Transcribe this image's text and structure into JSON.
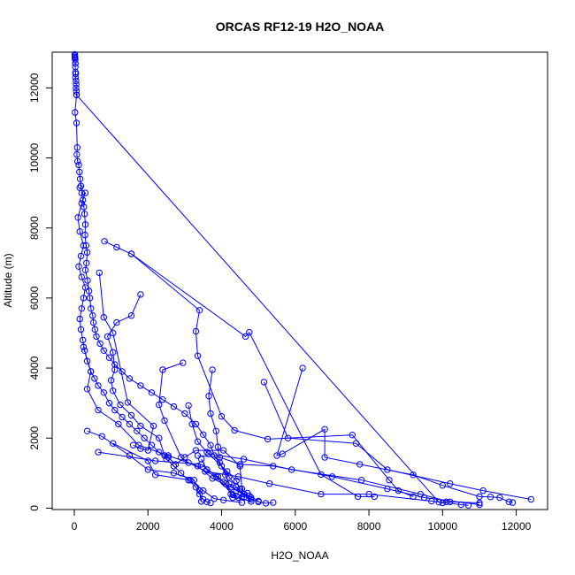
{
  "chart_data": {
    "type": "line",
    "title": "ORCAS RF12-19 H2O_NOAA",
    "xlabel": "H2O_NOAA",
    "ylabel": "Altitude (m)",
    "xlim": [
      -600,
      12850
    ],
    "ylim": [
      -40,
      13020
    ],
    "xticks": [
      0,
      2000,
      4000,
      6000,
      8000,
      10000,
      12000
    ],
    "yticks": [
      0,
      2000,
      4000,
      6000,
      8000,
      10000,
      12000
    ],
    "grid": false,
    "color": "#0000ff",
    "series": [
      {
        "values": [
          [
            12,
            12960
          ],
          [
            15,
            12920
          ],
          [
            18,
            12880
          ],
          [
            20,
            12850
          ],
          [
            25,
            12800
          ],
          [
            30,
            12700
          ],
          [
            28,
            12600
          ],
          [
            35,
            12450
          ],
          [
            40,
            12400
          ],
          [
            30,
            12300
          ],
          [
            45,
            12200
          ],
          [
            50,
            12100
          ],
          [
            48,
            12000
          ],
          [
            55,
            11900
          ],
          [
            60,
            11800
          ],
          [
            20,
            11300
          ],
          [
            60,
            11000
          ],
          [
            80,
            10300
          ],
          [
            70,
            10100
          ],
          [
            90,
            9900
          ],
          [
            120,
            9800
          ],
          [
            140,
            9600
          ],
          [
            160,
            9400
          ],
          [
            180,
            9200
          ],
          [
            200,
            9000
          ],
          [
            230,
            8800
          ],
          [
            260,
            8600
          ],
          [
            280,
            8400
          ],
          [
            300,
            8100
          ],
          [
            290,
            7800
          ],
          [
            320,
            7500
          ],
          [
            350,
            7300
          ],
          [
            330,
            7000
          ],
          [
            300,
            6800
          ],
          [
            360,
            6500
          ],
          [
            400,
            6200
          ],
          [
            420,
            6000
          ],
          [
            450,
            5700
          ],
          [
            500,
            5500
          ],
          [
            520,
            5300
          ],
          [
            560,
            5100
          ],
          [
            600,
            4900
          ],
          [
            700,
            4700
          ],
          [
            800,
            4500
          ],
          [
            950,
            4300
          ],
          [
            1100,
            4100
          ],
          [
            1300,
            3900
          ],
          [
            1500,
            3700
          ],
          [
            1800,
            3500
          ],
          [
            2100,
            3300
          ],
          [
            2400,
            3100
          ],
          [
            2700,
            2900
          ],
          [
            3000,
            2700
          ],
          [
            3300,
            2400
          ],
          [
            3500,
            2100
          ],
          [
            3700,
            1800
          ],
          [
            3800,
            1500
          ],
          [
            4000,
            1200
          ],
          [
            4200,
            900
          ],
          [
            4400,
            600
          ],
          [
            4600,
            400
          ],
          [
            4800,
            250
          ],
          [
            5000,
            180
          ],
          [
            5200,
            140
          ],
          [
            5400,
            160
          ]
        ]
      },
      {
        "values": [
          [
            60,
            11800
          ],
          [
            9900,
            170
          ],
          [
            10000,
            150
          ],
          [
            10100,
            180
          ]
        ]
      },
      {
        "values": [
          [
            150,
            9150
          ],
          [
            300,
            9000
          ],
          [
            200,
            8700
          ],
          [
            100,
            8300
          ],
          [
            150,
            7900
          ],
          [
            250,
            7500
          ],
          [
            180,
            7200
          ],
          [
            120,
            6900
          ],
          [
            200,
            6600
          ],
          [
            300,
            6300
          ],
          [
            250,
            6000
          ],
          [
            200,
            5700
          ],
          [
            150,
            5400
          ],
          [
            180,
            5100
          ],
          [
            230,
            4800
          ],
          [
            280,
            4500
          ],
          [
            350,
            4200
          ],
          [
            450,
            3900
          ],
          [
            550,
            3700
          ],
          [
            650,
            3500
          ],
          [
            800,
            3300
          ],
          [
            950,
            3000
          ],
          [
            1100,
            2800
          ],
          [
            1300,
            2600
          ],
          [
            1500,
            2400
          ],
          [
            1700,
            2200
          ],
          [
            1900,
            2000
          ],
          [
            2100,
            1800
          ],
          [
            2300,
            1600
          ],
          [
            2500,
            1400
          ],
          [
            2700,
            1200
          ],
          [
            2900,
            1000
          ],
          [
            3100,
            800
          ],
          [
            3300,
            600
          ],
          [
            3400,
            400
          ],
          [
            3500,
            250
          ],
          [
            3600,
            180
          ],
          [
            3700,
            150
          ]
        ]
      },
      {
        "values": [
          [
            820,
            7620
          ],
          [
            1150,
            7450
          ],
          [
            1550,
            7260
          ],
          [
            4650,
            4900
          ],
          [
            4750,
            5020
          ],
          [
            6700,
            960
          ],
          [
            7700,
            330
          ],
          [
            8150,
            330
          ]
        ]
      },
      {
        "values": [
          [
            1550,
            7260
          ],
          [
            3400,
            5650
          ],
          [
            3300,
            5050
          ],
          [
            3350,
            4350
          ],
          [
            4000,
            2620
          ],
          [
            4350,
            2220
          ],
          [
            5250,
            1970
          ],
          [
            7550,
            2090
          ],
          [
            8550,
            800
          ],
          [
            8800,
            500
          ],
          [
            9200,
            330
          ]
        ]
      },
      {
        "values": [
          [
            680,
            6720
          ],
          [
            800,
            5450
          ],
          [
            1050,
            5000
          ],
          [
            1450,
            3020
          ],
          [
            2150,
            2350
          ],
          [
            2000,
            1650
          ],
          [
            1800,
            1700
          ],
          [
            1600,
            1800
          ]
        ]
      },
      {
        "values": [
          [
            1800,
            6100
          ],
          [
            1550,
            5500
          ],
          [
            1150,
            5300
          ],
          [
            900,
            4900
          ],
          [
            1050,
            4450
          ],
          [
            1100,
            3950
          ],
          [
            1000,
            3650
          ],
          [
            1050,
            3350
          ],
          [
            1250,
            2950
          ],
          [
            1550,
            2650
          ],
          [
            1800,
            2350
          ],
          [
            2300,
            2000
          ],
          [
            2450,
            1500
          ],
          [
            2550,
            1450
          ],
          [
            2750,
            1250
          ],
          [
            3000,
            1450
          ],
          [
            3300,
            1650
          ],
          [
            4050,
            1650
          ],
          [
            4500,
            1200
          ],
          [
            4550,
            550
          ],
          [
            4600,
            300
          ]
        ]
      },
      {
        "values": [
          [
            2950,
            4150
          ],
          [
            2400,
            3950
          ],
          [
            2300,
            2950
          ],
          [
            2450,
            2500
          ],
          [
            2900,
            1450
          ],
          [
            3100,
            1300
          ],
          [
            3850,
            900
          ],
          [
            4300,
            380
          ],
          [
            4450,
            300
          ],
          [
            4800,
            190
          ]
        ]
      },
      {
        "values": [
          [
            3750,
            3950
          ],
          [
            3650,
            3200
          ],
          [
            3700,
            2700
          ],
          [
            3850,
            2200
          ],
          [
            3900,
            1750
          ],
          [
            3950,
            1300
          ],
          [
            4100,
            950
          ],
          [
            4200,
            700
          ],
          [
            4400,
            500
          ],
          [
            4800,
            300
          ]
        ]
      },
      {
        "values": [
          [
            6200,
            4000
          ],
          [
            5500,
            1500
          ],
          [
            5650,
            1550
          ],
          [
            6800,
            2250
          ],
          [
            6800,
            1450
          ],
          [
            7750,
            1250
          ],
          [
            9200,
            950
          ],
          [
            10000,
            650
          ],
          [
            11000,
            330
          ],
          [
            11300,
            320
          ],
          [
            11550,
            300
          ],
          [
            11800,
            180
          ],
          [
            11900,
            160
          ]
        ]
      },
      {
        "values": [
          [
            5150,
            3600
          ],
          [
            5800,
            2000
          ],
          [
            7650,
            1850
          ],
          [
            8500,
            1100
          ],
          [
            10200,
            700
          ],
          [
            11100,
            500
          ],
          [
            12400,
            250
          ]
        ]
      },
      {
        "values": [
          [
            650,
            1600
          ],
          [
            2200,
            1350
          ],
          [
            3450,
            1250
          ],
          [
            4050,
            750
          ],
          [
            4400,
            350
          ]
        ]
      },
      {
        "values": [
          [
            1050,
            1850
          ],
          [
            2000,
            1350
          ],
          [
            2200,
            950
          ],
          [
            3150,
            800
          ],
          [
            3500,
            500
          ],
          [
            3800,
            270
          ],
          [
            4050,
            230
          ],
          [
            4550,
            160
          ]
        ]
      },
      {
        "values": [
          [
            3450,
            1400
          ],
          [
            3600,
            1100
          ],
          [
            3900,
            900
          ],
          [
            4100,
            700
          ],
          [
            4250,
            400
          ],
          [
            4300,
            300
          ],
          [
            4550,
            320
          ]
        ]
      },
      {
        "values": [
          [
            350,
            2200
          ],
          [
            750,
            2050
          ],
          [
            1500,
            1500
          ],
          [
            2000,
            1100
          ],
          [
            2700,
            1000
          ],
          [
            3250,
            800
          ],
          [
            3400,
            500
          ],
          [
            3450,
            190
          ]
        ]
      },
      {
        "values": [
          [
            250,
            4600
          ],
          [
            450,
            3900
          ],
          [
            350,
            3400
          ],
          [
            650,
            2800
          ],
          [
            1200,
            2400
          ],
          [
            1750,
            1800
          ],
          [
            2550,
            1500
          ],
          [
            3350,
            1200
          ],
          [
            3750,
            850
          ],
          [
            4250,
            600
          ],
          [
            4750,
            350
          ],
          [
            5000,
            200
          ]
        ]
      },
      {
        "values": [
          [
            3550,
            1050
          ],
          [
            4450,
            900
          ],
          [
            5300,
            700
          ],
          [
            6700,
            400
          ],
          [
            8000,
            400
          ],
          [
            9700,
            200
          ],
          [
            10500,
            100
          ],
          [
            10700,
            80
          ]
        ]
      },
      {
        "values": [
          [
            3650,
            1550
          ],
          [
            4600,
            1400
          ],
          [
            5900,
            1100
          ],
          [
            7800,
            800
          ],
          [
            9400,
            400
          ],
          [
            10200,
            180
          ],
          [
            11000,
            150
          ]
        ]
      },
      {
        "values": [
          [
            3350,
            1500
          ],
          [
            3950,
            1450
          ],
          [
            4500,
            1250
          ],
          [
            5400,
            1200
          ],
          [
            7000,
            900
          ],
          [
            8500,
            550
          ],
          [
            9500,
            300
          ],
          [
            11000,
            100
          ]
        ]
      },
      {
        "values": [
          [
            3100,
            2930
          ],
          [
            3200,
            2400
          ],
          [
            3350,
            1900
          ],
          [
            3600,
            1600
          ],
          [
            4150,
            1050
          ],
          [
            4400,
            780
          ],
          [
            4500,
            550
          ],
          [
            4700,
            430
          ]
        ]
      }
    ]
  }
}
